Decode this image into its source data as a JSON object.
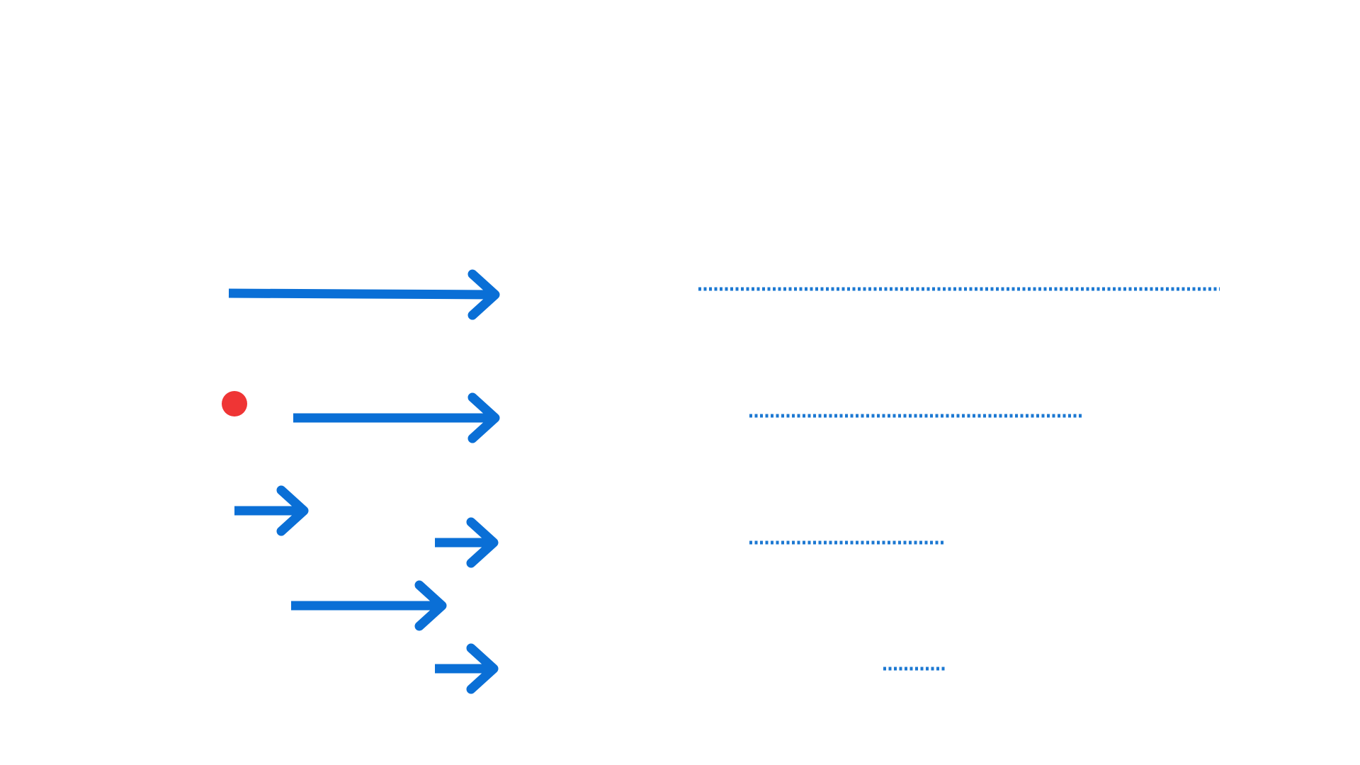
{
  "colors": {
    "background": "#ffffff",
    "arrow": "#0a6fd6",
    "dotted_line": "#1c78d2",
    "marker": "#ef3535"
  },
  "diagram": {
    "arrows": [
      {
        "id": "arrow-1",
        "icon": "arrow-right-icon"
      },
      {
        "id": "arrow-2",
        "icon": "arrow-right-icon"
      },
      {
        "id": "arrow-3",
        "icon": "arrow-right-icon"
      },
      {
        "id": "arrow-4",
        "icon": "arrow-right-icon"
      },
      {
        "id": "arrow-5",
        "icon": "arrow-right-icon"
      },
      {
        "id": "arrow-6",
        "icon": "arrow-right-icon"
      }
    ],
    "dotted_lines": [
      {
        "id": "dotted-line-1"
      },
      {
        "id": "dotted-line-2"
      },
      {
        "id": "dotted-line-3"
      },
      {
        "id": "dotted-line-4"
      }
    ],
    "marker": {
      "id": "red-dot-marker",
      "icon": "circle-icon"
    }
  }
}
